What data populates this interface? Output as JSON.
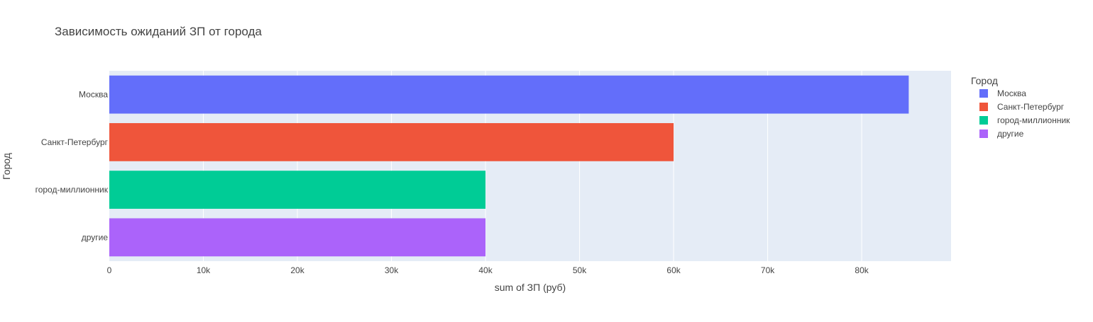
{
  "chart_data": {
    "type": "bar",
    "orientation": "horizontal",
    "title": "Зависимость ожиданий ЗП от города",
    "xlabel": "sum of ЗП (руб)",
    "ylabel": "Город",
    "categories": [
      "Москва",
      "Санкт-Петербург",
      "город-миллионник",
      "другие"
    ],
    "values": [
      85000,
      60000,
      40000,
      40000
    ],
    "colors": [
      "#636efa",
      "#ef553b",
      "#00cc96",
      "#ab63fa"
    ],
    "xlim": [
      0,
      89500
    ],
    "xticks": [
      0,
      10000,
      20000,
      30000,
      40000,
      50000,
      60000,
      70000,
      80000
    ],
    "xtick_labels": [
      "0",
      "10k",
      "20k",
      "30k",
      "40k",
      "50k",
      "60k",
      "70k",
      "80k"
    ],
    "grid": true,
    "plot_background": "#e5ecf6",
    "legend": {
      "title": "Город",
      "placement": "top-right",
      "items": [
        "Москва",
        "Санкт-Петербург",
        "город-миллионник",
        "другие"
      ]
    }
  }
}
